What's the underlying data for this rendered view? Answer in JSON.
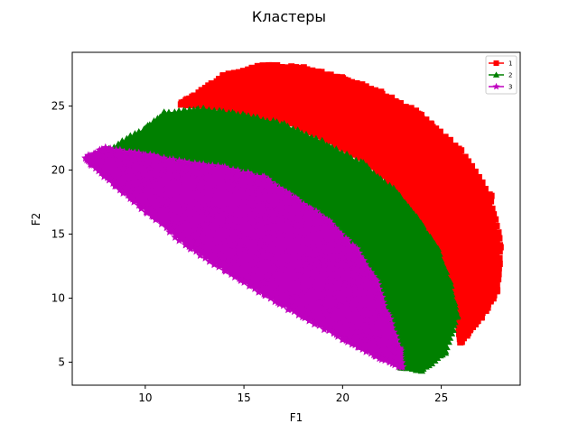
{
  "chart_data": {
    "type": "scatter",
    "title": "Кластеры",
    "xlabel": "F1",
    "ylabel": "F2",
    "xlim": [
      6.3,
      29.0
    ],
    "ylim": [
      3.2,
      29.2
    ],
    "xticks": [
      10,
      15,
      20,
      25
    ],
    "yticks": [
      5,
      10,
      15,
      20,
      25
    ],
    "grid": false,
    "legend_position": "top-right",
    "series": [
      {
        "name": "1",
        "color": "#ff0000",
        "marker": "square",
        "region": {
          "boundary": [
            [
              12.5,
              25.8
            ],
            [
              14.0,
              27.4
            ],
            [
              16.0,
              28.2
            ],
            [
              18.0,
              28.0
            ],
            [
              20.0,
              27.2
            ],
            [
              22.0,
              26.0
            ],
            [
              24.0,
              24.3
            ],
            [
              26.0,
              21.5
            ],
            [
              27.5,
              18.0
            ],
            [
              28.0,
              14.0
            ],
            [
              27.8,
              10.5
            ],
            [
              27.0,
              8.5
            ],
            [
              26.0,
              6.5
            ],
            [
              25.8,
              8.5
            ],
            [
              25.4,
              11.5
            ],
            [
              24.8,
              14.0
            ],
            [
              23.8,
              16.5
            ],
            [
              22.6,
              18.8
            ],
            [
              21.0,
              20.8
            ],
            [
              19.0,
              22.5
            ],
            [
              17.0,
              23.8
            ],
            [
              15.0,
              24.5
            ],
            [
              13.0,
              25.0
            ],
            [
              11.8,
              25.2
            ]
          ]
        }
      },
      {
        "name": "2",
        "color": "#008000",
        "marker": "triangle",
        "region": {
          "boundary": [
            [
              8.2,
              21.6
            ],
            [
              10.0,
              23.3
            ],
            [
              11.0,
              24.5
            ],
            [
              13.0,
              24.8
            ],
            [
              15.0,
              24.3
            ],
            [
              17.0,
              23.6
            ],
            [
              19.0,
              22.2
            ],
            [
              21.0,
              20.5
            ],
            [
              22.6,
              18.5
            ],
            [
              23.8,
              16.2
            ],
            [
              24.8,
              13.8
            ],
            [
              25.4,
              11.3
            ],
            [
              25.8,
              8.5
            ],
            [
              25.2,
              5.8
            ],
            [
              24.0,
              4.4
            ],
            [
              23.0,
              4.6
            ],
            [
              22.5,
              6.0
            ],
            [
              22.2,
              8.2
            ],
            [
              21.6,
              11.0
            ],
            [
              20.6,
              13.5
            ],
            [
              19.2,
              15.8
            ],
            [
              17.4,
              17.6
            ],
            [
              15.4,
              19.0
            ],
            [
              13.4,
              19.8
            ],
            [
              11.4,
              20.2
            ],
            [
              9.6,
              20.9
            ]
          ]
        }
      },
      {
        "name": "3",
        "color": "#bf00bf",
        "marker": "star",
        "region": {
          "boundary": [
            [
              7.0,
              21.0
            ],
            [
              8.0,
              21.7
            ],
            [
              10.0,
              21.2
            ],
            [
              12.0,
              20.6
            ],
            [
              14.0,
              20.2
            ],
            [
              16.0,
              19.4
            ],
            [
              17.6,
              17.8
            ],
            [
              19.3,
              16.0
            ],
            [
              20.7,
              13.8
            ],
            [
              21.7,
              11.3
            ],
            [
              22.3,
              8.6
            ],
            [
              22.9,
              6.0
            ],
            [
              23.0,
              4.6
            ],
            [
              21.6,
              5.5
            ],
            [
              20.0,
              6.8
            ],
            [
              18.0,
              8.5
            ],
            [
              16.0,
              10.3
            ],
            [
              14.0,
              12.2
            ],
            [
              12.0,
              14.2
            ],
            [
              10.0,
              16.8
            ],
            [
              8.5,
              18.8
            ],
            [
              7.3,
              20.4
            ]
          ]
        }
      }
    ]
  }
}
